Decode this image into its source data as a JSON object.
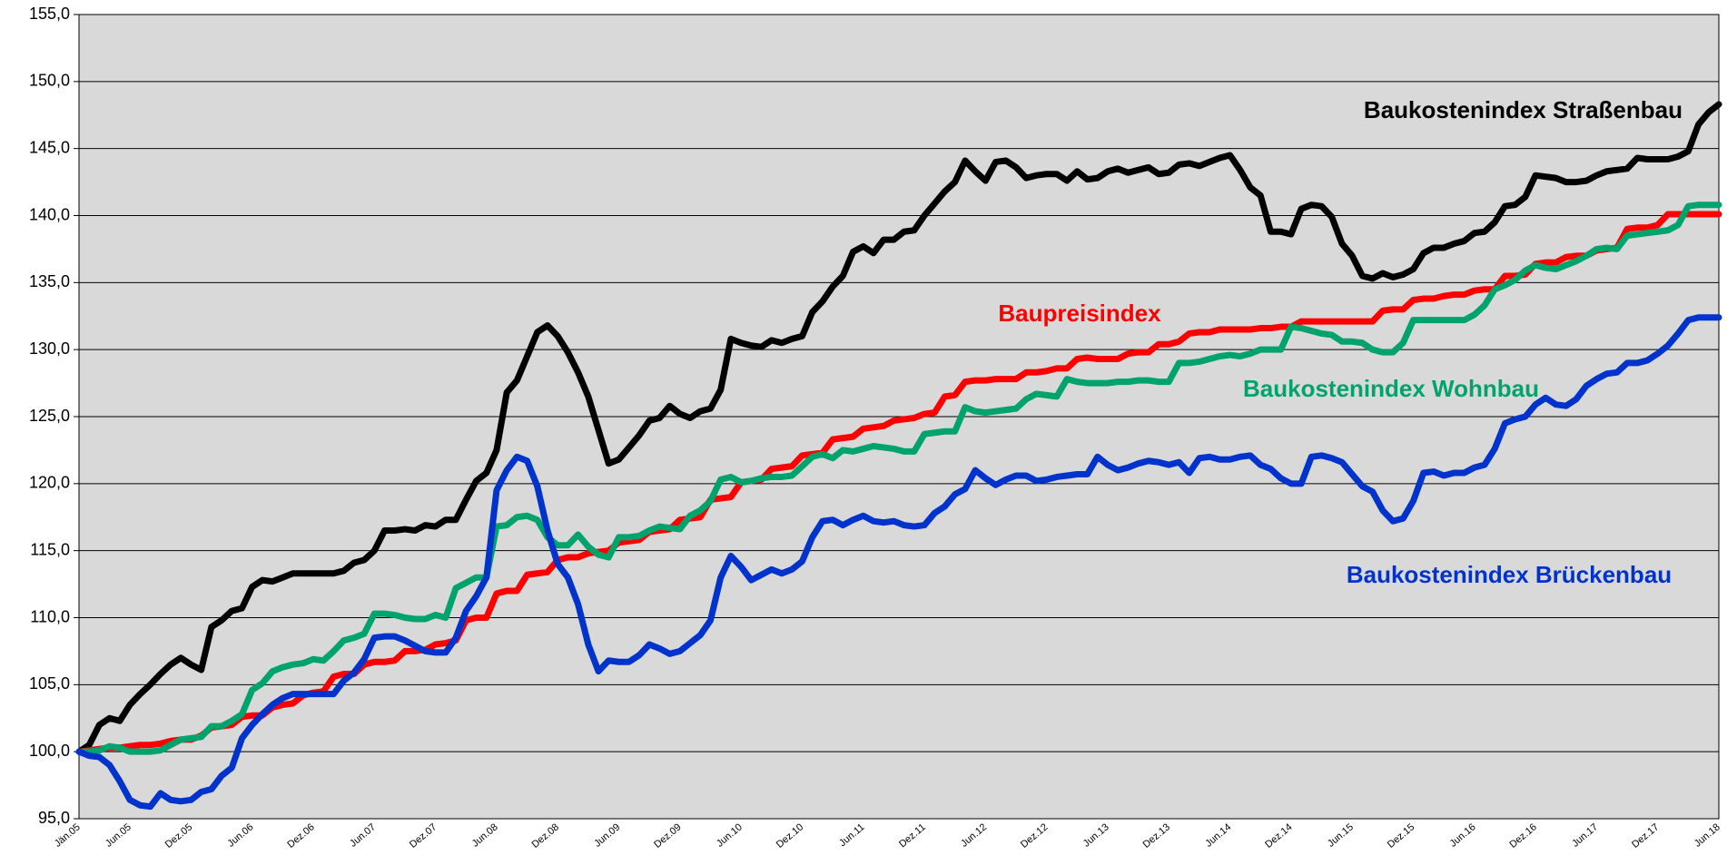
{
  "chart_data": {
    "type": "line",
    "categories": [
      "Jän.05",
      null,
      null,
      null,
      null,
      "Jun.05",
      null,
      null,
      null,
      null,
      null,
      "Dez.05",
      null,
      null,
      null,
      null,
      null,
      "Jun.06",
      null,
      null,
      null,
      null,
      null,
      "Dez.06",
      null,
      null,
      null,
      null,
      null,
      "Jun.07",
      null,
      null,
      null,
      null,
      null,
      "Dez.07",
      null,
      null,
      null,
      null,
      null,
      "Jun.08",
      null,
      null,
      null,
      null,
      null,
      "Dez.08",
      null,
      null,
      null,
      null,
      null,
      "Jun.09",
      null,
      null,
      null,
      null,
      null,
      "Dez.09",
      null,
      null,
      null,
      null,
      null,
      "Jun.10",
      null,
      null,
      null,
      null,
      null,
      "Dez.10",
      null,
      null,
      null,
      null,
      null,
      "Jun.11",
      null,
      null,
      null,
      null,
      null,
      "Dez.11",
      null,
      null,
      null,
      null,
      null,
      "Jun.12",
      null,
      null,
      null,
      null,
      null,
      "Dez.12",
      null,
      null,
      null,
      null,
      null,
      "Jun.13",
      null,
      null,
      null,
      null,
      null,
      "Dez.13",
      null,
      null,
      null,
      null,
      null,
      "Jun.14",
      null,
      null,
      null,
      null,
      null,
      "Dez.14",
      null,
      null,
      null,
      null,
      null,
      "Jun.15",
      null,
      null,
      null,
      null,
      null,
      "Dez.15",
      null,
      null,
      null,
      null,
      null,
      "Jun.16",
      null,
      null,
      null,
      null,
      null,
      "Dez.16",
      null,
      null,
      null,
      null,
      null,
      "Jun.17",
      null,
      null,
      null,
      null,
      null,
      "Dez.17",
      null,
      null,
      null,
      null,
      null,
      "Jun.18"
    ],
    "series": [
      {
        "name": "Baukostenindex Straßenbau",
        "color": "#000000",
        "values": [
          100,
          100.5,
          102,
          102.5,
          102.3,
          103.5,
          104.3,
          105,
          105.8,
          106.5,
          107,
          106.5,
          106.1,
          109.3,
          109.8,
          110.5,
          110.7,
          112.3,
          112.8,
          112.7,
          113,
          113.3,
          113.3,
          113.3,
          113.3,
          113.3,
          113.5,
          114.1,
          114.3,
          115,
          116.5,
          116.5,
          116.6,
          116.5,
          116.9,
          116.8,
          117.3,
          117.3,
          118.8,
          120.2,
          120.8,
          122.5,
          126.8,
          127.7,
          129.5,
          131.3,
          131.8,
          131,
          129.8,
          128.3,
          126.5,
          124,
          121.5,
          121.8,
          122.7,
          123.6,
          124.7,
          124.9,
          125.8,
          125.2,
          124.9,
          125.4,
          125.6,
          127,
          130.8,
          130.5,
          130.3,
          130.2,
          130.7,
          130.5,
          130.8,
          131,
          132.8,
          133.6,
          134.7,
          135.5,
          137.3,
          137.7,
          137.2,
          138.2,
          138.2,
          138.8,
          138.9,
          140,
          140.9,
          141.8,
          142.5,
          144.1,
          143.3,
          142.6,
          144,
          144.1,
          143.6,
          142.8,
          143,
          143.1,
          143.1,
          142.6,
          143.3,
          142.7,
          142.8,
          143.3,
          143.5,
          143.2,
          143.4,
          143.6,
          143.1,
          143.2,
          143.8,
          143.9,
          143.7,
          144,
          144.3,
          144.5,
          143.4,
          142.1,
          141.5,
          138.8,
          138.8,
          138.6,
          140.5,
          140.8,
          140.7,
          139.9,
          137.9,
          137,
          135.5,
          135.3,
          135.7,
          135.4,
          135.6,
          136,
          137.2,
          137.6,
          137.6,
          137.9,
          138.1,
          138.7,
          138.8,
          139.5,
          140.7,
          140.8,
          141.4,
          143,
          142.9,
          142.8,
          142.5,
          142.5,
          142.6,
          143,
          143.3,
          143.4,
          143.5,
          144.3,
          144.2,
          144.2,
          144.2,
          144.4,
          144.8,
          146.8,
          147.7,
          148.3
        ]
      },
      {
        "name": "Baupreisindex",
        "color": "#ff0000",
        "values": [
          100,
          100.1,
          100.2,
          100.3,
          100.3,
          100.4,
          100.5,
          100.5,
          100.6,
          100.8,
          100.9,
          100.9,
          101.2,
          101.8,
          101.9,
          102,
          102.6,
          102.7,
          102.7,
          103.3,
          103.5,
          103.6,
          104.2,
          104.4,
          104.5,
          105.6,
          105.8,
          105.8,
          106.5,
          106.7,
          106.7,
          106.8,
          107.5,
          107.5,
          107.6,
          108,
          108.1,
          108.3,
          109.8,
          110,
          110,
          111.8,
          112,
          112,
          113.2,
          113.3,
          113.4,
          114.3,
          114.5,
          114.5,
          114.8,
          114.9,
          115,
          115.6,
          115.7,
          115.8,
          116.4,
          116.5,
          116.6,
          117.3,
          117.4,
          117.5,
          118.8,
          118.9,
          119,
          120.1,
          120.2,
          120.3,
          121.1,
          121.2,
          121.3,
          122.1,
          122.2,
          122.3,
          123.3,
          123.4,
          123.5,
          124.1,
          124.2,
          124.3,
          124.7,
          124.8,
          124.9,
          125.2,
          125.3,
          126.5,
          126.6,
          127.6,
          127.7,
          127.7,
          127.8,
          127.8,
          127.8,
          128.3,
          128.3,
          128.4,
          128.6,
          128.6,
          129.3,
          129.4,
          129.3,
          129.3,
          129.3,
          129.7,
          129.8,
          129.8,
          130.4,
          130.4,
          130.6,
          131.2,
          131.3,
          131.3,
          131.5,
          131.5,
          131.5,
          131.5,
          131.6,
          131.6,
          131.7,
          131.7,
          132.1,
          132.1,
          132.1,
          132.1,
          132.1,
          132.1,
          132.1,
          132.1,
          132.9,
          133,
          133,
          133.7,
          133.8,
          133.8,
          134,
          134.1,
          134.1,
          134.4,
          134.5,
          134.5,
          135.5,
          135.5,
          135.6,
          136.4,
          136.5,
          136.5,
          136.9,
          137,
          137,
          137.4,
          137.5,
          137.6,
          139,
          139.1,
          139.1,
          139.3,
          140.1,
          140.1,
          140.1,
          140.1,
          140.1,
          140.1
        ]
      },
      {
        "name": "Baukostenindex Wohnbau",
        "color": "#00a36c",
        "values": [
          100,
          100,
          100.1,
          100.4,
          100.3,
          100,
          100,
          100,
          100.1,
          100.5,
          100.9,
          101,
          101.1,
          101.9,
          101.9,
          102.3,
          102.8,
          104.6,
          105.1,
          106,
          106.3,
          106.5,
          106.6,
          106.9,
          106.8,
          107.5,
          108.3,
          108.5,
          108.8,
          110.3,
          110.3,
          110.2,
          110,
          109.9,
          109.9,
          110.2,
          110,
          112.2,
          112.6,
          113,
          113,
          116.8,
          116.9,
          117.5,
          117.6,
          117.3,
          116,
          115.4,
          115.4,
          116.2,
          115.3,
          114.7,
          114.5,
          116,
          116,
          116.1,
          116.5,
          116.8,
          116.7,
          116.6,
          117.6,
          118,
          118.7,
          120.3,
          120.5,
          120.1,
          120.2,
          120.4,
          120.5,
          120.5,
          120.6,
          121.3,
          122,
          122.2,
          121.9,
          122.5,
          122.4,
          122.6,
          122.8,
          122.7,
          122.6,
          122.4,
          122.4,
          123.7,
          123.8,
          123.9,
          123.9,
          125.7,
          125.4,
          125.3,
          125.4,
          125.5,
          125.6,
          126.3,
          126.7,
          126.6,
          126.5,
          127.8,
          127.6,
          127.5,
          127.5,
          127.5,
          127.6,
          127.6,
          127.7,
          127.7,
          127.6,
          127.6,
          129,
          129,
          129.1,
          129.3,
          129.5,
          129.6,
          129.5,
          129.7,
          130,
          130,
          130,
          131.7,
          131.6,
          131.4,
          131.2,
          131.1,
          130.6,
          130.6,
          130.5,
          130,
          129.8,
          129.8,
          130.5,
          132.2,
          132.2,
          132.2,
          132.2,
          132.2,
          132.2,
          132.6,
          133.3,
          134.5,
          134.8,
          135.2,
          135.9,
          136.3,
          136.1,
          136,
          136.3,
          136.6,
          137,
          137.5,
          137.6,
          137.5,
          138.5,
          138.6,
          138.7,
          138.8,
          138.9,
          139.3,
          140.7,
          140.8,
          140.8,
          140.8
        ]
      },
      {
        "name": "Baukostenindex Brückenbau",
        "color": "#0033cc",
        "values": [
          100,
          99.7,
          99.6,
          99,
          97.8,
          96.4,
          96,
          95.9,
          96.9,
          96.4,
          96.3,
          96.4,
          97,
          97.2,
          98.2,
          98.8,
          101,
          102,
          102.8,
          103.5,
          104,
          104.3,
          104.3,
          104.3,
          104.3,
          104.3,
          105.3,
          105.9,
          106.9,
          108.5,
          108.6,
          108.6,
          108.3,
          107.9,
          107.5,
          107.4,
          107.4,
          108.5,
          110.5,
          111.6,
          113,
          119.5,
          121,
          122,
          121.7,
          119.8,
          116.5,
          114,
          113,
          111,
          108,
          106,
          106.8,
          106.7,
          106.7,
          107.2,
          108,
          107.7,
          107.3,
          107.5,
          108.1,
          108.7,
          109.8,
          113,
          114.6,
          113.8,
          112.8,
          113.2,
          113.6,
          113.3,
          113.6,
          114.2,
          116,
          117.2,
          117.3,
          116.9,
          117.3,
          117.6,
          117.2,
          117.1,
          117.2,
          116.9,
          116.8,
          116.9,
          117.8,
          118.3,
          119.2,
          119.6,
          121,
          120.4,
          119.9,
          120.3,
          120.6,
          120.6,
          120.2,
          120.3,
          120.5,
          120.6,
          120.7,
          120.7,
          122,
          121.4,
          121,
          121.2,
          121.5,
          121.7,
          121.6,
          121.4,
          121.6,
          120.8,
          121.9,
          122,
          121.8,
          121.8,
          122,
          122.1,
          121.4,
          121.1,
          120.4,
          120,
          120,
          122,
          122.1,
          121.9,
          121.6,
          120.7,
          119.8,
          119.4,
          118,
          117.2,
          117.4,
          118.7,
          120.8,
          120.9,
          120.6,
          120.8,
          120.8,
          121.2,
          121.4,
          122.6,
          124.5,
          124.8,
          125,
          125.9,
          126.4,
          125.9,
          125.8,
          126.3,
          127.3,
          127.8,
          128.2,
          128.3,
          129,
          129,
          129.2,
          129.7,
          130.3,
          131.2,
          132.2,
          132.4,
          132.4,
          132.4
        ]
      }
    ],
    "ylim": [
      95,
      155
    ],
    "yticks": [
      {
        "value": 95,
        "label": "95,0"
      },
      {
        "value": 100,
        "label": "100,0"
      },
      {
        "value": 105,
        "label": "105,0"
      },
      {
        "value": 110,
        "label": "110,0"
      },
      {
        "value": 115,
        "label": "115,0"
      },
      {
        "value": 120,
        "label": "120,0"
      },
      {
        "value": 125,
        "label": "125,0"
      },
      {
        "value": 130,
        "label": "130,0"
      },
      {
        "value": 135,
        "label": "135,0"
      },
      {
        "value": 140,
        "label": "140,0"
      },
      {
        "value": 145,
        "label": "145,0"
      },
      {
        "value": 150,
        "label": "150,0"
      },
      {
        "value": 155,
        "label": "155,0"
      }
    ],
    "grid": true,
    "background": "#d9d9d9"
  }
}
